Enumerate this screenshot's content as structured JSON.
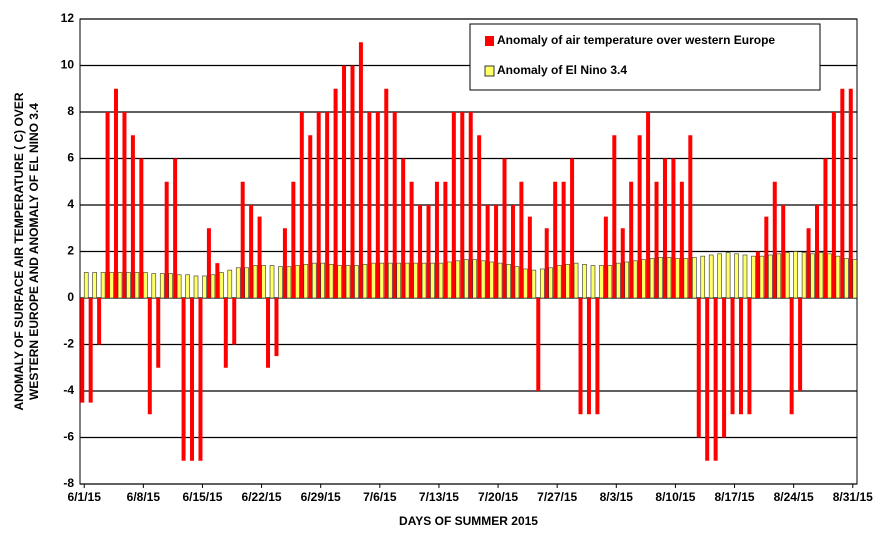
{
  "chart_data": {
    "type": "bar",
    "ylabel": [
      "ANOMALY OF SURFACE AIR TEMPERATURE ( C) OVER",
      "WESTERN EUROPE AND ANOMALY OF  EL NINO 3.4"
    ],
    "xlabel": "DAYS OF SUMMER 2015",
    "categories": [
      "6/1/15",
      null,
      null,
      null,
      null,
      null,
      null,
      "6/8/15",
      null,
      null,
      null,
      null,
      null,
      null,
      "6/15/15",
      null,
      null,
      null,
      null,
      null,
      null,
      "6/22/15",
      null,
      null,
      null,
      null,
      null,
      null,
      "6/29/15",
      null,
      null,
      null,
      null,
      null,
      null,
      "7/6/15",
      null,
      null,
      null,
      null,
      null,
      null,
      "7/13/15",
      null,
      null,
      null,
      null,
      null,
      null,
      "7/20/15",
      null,
      null,
      null,
      null,
      null,
      null,
      "7/27/15",
      null,
      null,
      null,
      null,
      null,
      null,
      "8/3/15",
      null,
      null,
      null,
      null,
      null,
      null,
      "8/10/15",
      null,
      null,
      null,
      null,
      null,
      null,
      "8/17/15",
      null,
      null,
      null,
      null,
      null,
      null,
      "8/24/15",
      null,
      null,
      null,
      null,
      null,
      null,
      "8/31/15"
    ],
    "series": [
      {
        "name": "Anomaly of air temperature over western Europe",
        "color": "#ff0000",
        "values": [
          -4.5,
          -4.5,
          -2,
          8,
          9,
          8,
          7,
          6,
          -5,
          -3,
          5,
          6,
          -7,
          -7,
          -7,
          3,
          1.5,
          -3,
          -2,
          5,
          4,
          3.5,
          -3,
          -2.5,
          3,
          5,
          8,
          7,
          8,
          8,
          9,
          10,
          10,
          11,
          8,
          8,
          9,
          8,
          6,
          5,
          4,
          4,
          5,
          5,
          8,
          8,
          8,
          7,
          4,
          4,
          6,
          4,
          5,
          3.5,
          -4,
          3,
          5,
          5,
          6,
          -5,
          -5,
          -5,
          3.5,
          7,
          3,
          5,
          7,
          8,
          5,
          6,
          6,
          5,
          7,
          -6,
          -7,
          -7,
          -6,
          -5,
          -5,
          -5,
          2,
          3.5,
          5,
          4,
          -5,
          -4,
          3,
          4,
          6,
          8,
          9,
          9
        ]
      },
      {
        "name": "Anomaly of El Nino 3.4",
        "color": "#ffff66",
        "values": [
          1.1,
          1.1,
          1.1,
          1.1,
          1.1,
          1.1,
          1.1,
          1.1,
          1.05,
          1.05,
          1.05,
          1.0,
          1.0,
          0.95,
          0.95,
          1.0,
          1.1,
          1.2,
          1.3,
          1.3,
          1.4,
          1.4,
          1.4,
          1.35,
          1.35,
          1.4,
          1.45,
          1.5,
          1.5,
          1.45,
          1.4,
          1.4,
          1.4,
          1.45,
          1.5,
          1.5,
          1.5,
          1.5,
          1.5,
          1.5,
          1.5,
          1.5,
          1.5,
          1.55,
          1.6,
          1.65,
          1.65,
          1.6,
          1.55,
          1.5,
          1.45,
          1.35,
          1.25,
          1.2,
          1.25,
          1.3,
          1.4,
          1.45,
          1.5,
          1.45,
          1.4,
          1.4,
          1.4,
          1.5,
          1.55,
          1.6,
          1.65,
          1.7,
          1.75,
          1.75,
          1.7,
          1.7,
          1.75,
          1.8,
          1.85,
          1.9,
          1.95,
          1.9,
          1.85,
          1.8,
          1.8,
          1.85,
          1.9,
          1.95,
          2.0,
          1.95,
          1.9,
          1.95,
          1.9,
          1.8,
          1.7,
          1.65
        ]
      }
    ],
    "ylim": [
      -8,
      12
    ],
    "yticks": [
      -8,
      -6,
      -4,
      -2,
      0,
      2,
      4,
      6,
      8,
      10,
      12
    ],
    "grid": true
  }
}
